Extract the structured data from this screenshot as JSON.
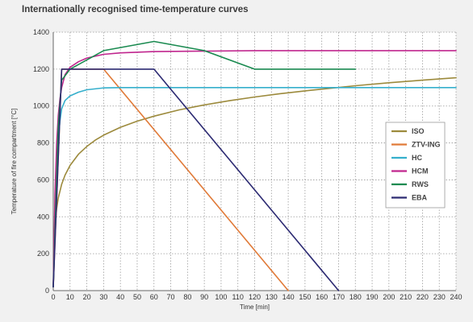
{
  "chart_data": {
    "type": "line",
    "title": "Internationally recognised time-temperature curves",
    "xlabel": "Time [min]",
    "ylabel": "Temperature of fire compartment [°C]",
    "xlim": [
      0,
      240
    ],
    "ylim": [
      0,
      1400
    ],
    "x_ticks": [
      0,
      10,
      20,
      30,
      40,
      50,
      60,
      70,
      80,
      90,
      100,
      110,
      120,
      130,
      140,
      150,
      160,
      170,
      180,
      190,
      200,
      210,
      220,
      230,
      240
    ],
    "y_ticks": [
      0,
      200,
      400,
      600,
      800,
      1000,
      1200,
      1400
    ],
    "grid": true,
    "legend_position": "right",
    "series": [
      {
        "name": "ISO",
        "color": "#9c8a3c",
        "points": [
          [
            0,
            20
          ],
          [
            1,
            349
          ],
          [
            2,
            445
          ],
          [
            3,
            502
          ],
          [
            5,
            576
          ],
          [
            7,
            626
          ],
          [
            10,
            678
          ],
          [
            15,
            739
          ],
          [
            20,
            781
          ],
          [
            25,
            815
          ],
          [
            30,
            842
          ],
          [
            40,
            885
          ],
          [
            50,
            918
          ],
          [
            60,
            945
          ],
          [
            75,
            979
          ],
          [
            90,
            1006
          ],
          [
            105,
            1029
          ],
          [
            120,
            1049
          ],
          [
            135,
            1067
          ],
          [
            150,
            1082
          ],
          [
            165,
            1096
          ],
          [
            180,
            1110
          ],
          [
            200,
            1126
          ],
          [
            220,
            1140
          ],
          [
            240,
            1153
          ]
        ]
      },
      {
        "name": "ZTV-ING",
        "color": "#e07a38",
        "points": [
          [
            0,
            20
          ],
          [
            5,
            1200
          ],
          [
            30,
            1200
          ],
          [
            140,
            0
          ]
        ]
      },
      {
        "name": "HC",
        "color": "#35afcc",
        "points": [
          [
            0,
            20
          ],
          [
            1,
            380
          ],
          [
            2,
            650
          ],
          [
            3,
            820
          ],
          [
            4,
            920
          ],
          [
            5,
            985
          ],
          [
            7,
            1030
          ],
          [
            10,
            1055
          ],
          [
            15,
            1075
          ],
          [
            20,
            1088
          ],
          [
            30,
            1098
          ],
          [
            40,
            1100
          ],
          [
            60,
            1100
          ],
          [
            120,
            1100
          ],
          [
            180,
            1100
          ],
          [
            240,
            1100
          ]
        ]
      },
      {
        "name": "HCM",
        "color": "#c0268e",
        "points": [
          [
            0,
            20
          ],
          [
            1,
            520
          ],
          [
            2,
            800
          ],
          [
            3,
            950
          ],
          [
            4,
            1040
          ],
          [
            5,
            1100
          ],
          [
            7,
            1170
          ],
          [
            10,
            1210
          ],
          [
            15,
            1240
          ],
          [
            20,
            1260
          ],
          [
            30,
            1280
          ],
          [
            40,
            1288
          ],
          [
            60,
            1295
          ],
          [
            120,
            1300
          ],
          [
            180,
            1300
          ],
          [
            240,
            1300
          ]
        ]
      },
      {
        "name": "RWS",
        "color": "#1a8a50",
        "points": [
          [
            0,
            20
          ],
          [
            3,
            890
          ],
          [
            5,
            1140
          ],
          [
            10,
            1200
          ],
          [
            30,
            1300
          ],
          [
            60,
            1350
          ],
          [
            90,
            1300
          ],
          [
            120,
            1200
          ],
          [
            180,
            1200
          ]
        ]
      },
      {
        "name": "EBA",
        "color": "#2c2a72",
        "points": [
          [
            0,
            20
          ],
          [
            5,
            1200
          ],
          [
            60,
            1200
          ],
          [
            170,
            0
          ]
        ]
      }
    ]
  }
}
